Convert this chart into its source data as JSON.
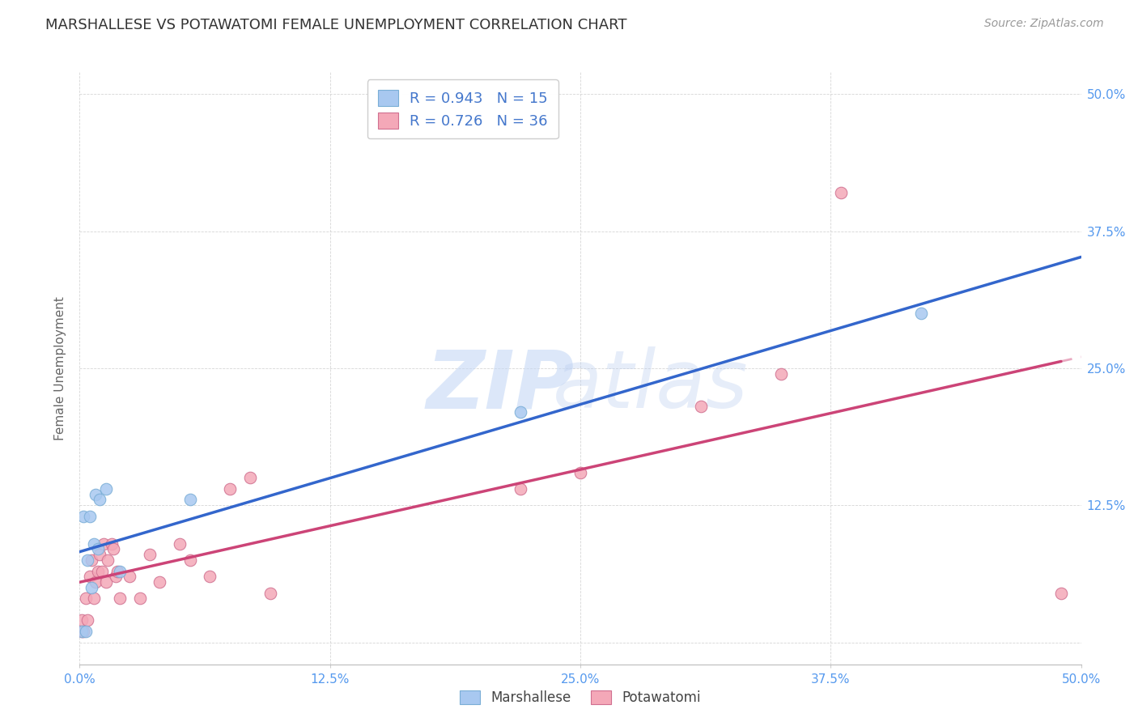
{
  "title": "MARSHALLESE VS POTAWATOMI FEMALE UNEMPLOYMENT CORRELATION CHART",
  "source": "Source: ZipAtlas.com",
  "ylabel": "Female Unemployment",
  "xlim": [
    0.0,
    0.5
  ],
  "ylim": [
    -0.02,
    0.52
  ],
  "xtick_vals": [
    0.0,
    0.125,
    0.25,
    0.375,
    0.5
  ],
  "ytick_vals": [
    0.0,
    0.125,
    0.25,
    0.375,
    0.5
  ],
  "right_ytick_vals": [
    0.125,
    0.25,
    0.375,
    0.5
  ],
  "right_ytick_labels": [
    "12.5%",
    "25.0%",
    "37.5%",
    "50.0%"
  ],
  "marshallese_color": "#a8c8f0",
  "marshallese_edge": "#7aaed6",
  "potawatomi_color": "#f4a8b8",
  "potawatomi_edge": "#d07090",
  "marshallese_line_color": "#3366cc",
  "potawatomi_line_color": "#cc4477",
  "marshallese_R": "0.943",
  "marshallese_N": "15",
  "potawatomi_R": "0.726",
  "potawatomi_N": "36",
  "marshallese_points_x": [
    0.001,
    0.002,
    0.003,
    0.004,
    0.005,
    0.006,
    0.007,
    0.008,
    0.009,
    0.01,
    0.013,
    0.02,
    0.055,
    0.22,
    0.42
  ],
  "marshallese_points_y": [
    0.01,
    0.115,
    0.01,
    0.075,
    0.115,
    0.05,
    0.09,
    0.135,
    0.085,
    0.13,
    0.14,
    0.065,
    0.13,
    0.21,
    0.3
  ],
  "potawatomi_points_x": [
    0.001,
    0.001,
    0.002,
    0.003,
    0.004,
    0.005,
    0.006,
    0.007,
    0.008,
    0.009,
    0.01,
    0.011,
    0.012,
    0.013,
    0.014,
    0.016,
    0.017,
    0.018,
    0.019,
    0.02,
    0.025,
    0.03,
    0.035,
    0.04,
    0.05,
    0.055,
    0.065,
    0.075,
    0.085,
    0.095,
    0.22,
    0.25,
    0.31,
    0.35,
    0.38,
    0.49
  ],
  "potawatomi_points_y": [
    0.01,
    0.02,
    0.01,
    0.04,
    0.02,
    0.06,
    0.075,
    0.04,
    0.055,
    0.065,
    0.08,
    0.065,
    0.09,
    0.055,
    0.075,
    0.09,
    0.085,
    0.06,
    0.065,
    0.04,
    0.06,
    0.04,
    0.08,
    0.055,
    0.09,
    0.075,
    0.06,
    0.14,
    0.15,
    0.045,
    0.14,
    0.155,
    0.215,
    0.245,
    0.41,
    0.045
  ],
  "background_color": "#ffffff",
  "grid_color": "#cccccc",
  "legend_text_color": "#4477cc",
  "label_color": "#5599ee"
}
